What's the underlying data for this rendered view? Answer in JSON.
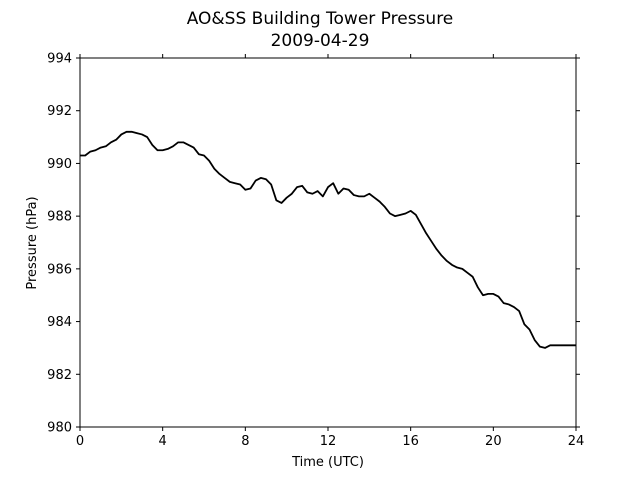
{
  "chart_data": {
    "type": "line",
    "title": "AO&SS Building Tower Pressure",
    "subtitle": "2009-04-29",
    "xlabel": "Time (UTC)",
    "ylabel": "Pressure (hPa)",
    "xlim": [
      0,
      24
    ],
    "ylim": [
      980,
      994
    ],
    "x_ticks": [
      0,
      4,
      8,
      12,
      16,
      20,
      24
    ],
    "y_ticks": [
      980,
      982,
      984,
      986,
      988,
      990,
      992,
      994
    ],
    "grid": false,
    "legend": "none",
    "line_color": "#000000",
    "series": [
      {
        "x": [
          0.0,
          0.25,
          0.5,
          0.75,
          1.0,
          1.25,
          1.5,
          1.75,
          2.0,
          2.25,
          2.5,
          2.75,
          3.0,
          3.25,
          3.5,
          3.75,
          4.0,
          4.25,
          4.5,
          4.75,
          5.0,
          5.25,
          5.5,
          5.75,
          6.0,
          6.25,
          6.5,
          6.75,
          7.0,
          7.25,
          7.5,
          7.75,
          8.0,
          8.25,
          8.5,
          8.75,
          9.0,
          9.25,
          9.5,
          9.75,
          10.0,
          10.25,
          10.5,
          10.75,
          11.0,
          11.25,
          11.5,
          11.75,
          12.0,
          12.25,
          12.5,
          12.75,
          13.0,
          13.25,
          13.5,
          13.75,
          14.0,
          14.25,
          14.5,
          14.75,
          15.0,
          15.25,
          15.5,
          15.75,
          16.0,
          16.25,
          16.5,
          16.75,
          17.0,
          17.25,
          17.5,
          17.75,
          18.0,
          18.25,
          18.5,
          18.75,
          19.0,
          19.25,
          19.5,
          19.75,
          20.0,
          20.25,
          20.5,
          20.75,
          21.0,
          21.25,
          21.5,
          21.75,
          22.0,
          22.25,
          22.5,
          22.75,
          23.0,
          23.25,
          23.5,
          23.75,
          24.0
        ],
        "y": [
          990.3,
          990.3,
          990.45,
          990.5,
          990.6,
          990.65,
          990.8,
          990.9,
          991.1,
          991.2,
          991.2,
          991.15,
          991.1,
          991.0,
          990.7,
          990.5,
          990.5,
          990.55,
          990.65,
          990.8,
          990.8,
          990.7,
          990.6,
          990.35,
          990.3,
          990.1,
          989.8,
          989.6,
          989.45,
          989.3,
          989.25,
          989.2,
          989.0,
          989.05,
          989.35,
          989.45,
          989.4,
          989.2,
          988.6,
          988.5,
          988.7,
          988.85,
          989.1,
          989.15,
          988.9,
          988.85,
          988.95,
          988.75,
          989.1,
          989.25,
          988.85,
          989.05,
          989.0,
          988.8,
          988.75,
          988.75,
          988.85,
          988.7,
          988.55,
          988.35,
          988.1,
          988.0,
          988.05,
          988.1,
          988.2,
          988.05,
          987.7,
          987.35,
          987.05,
          986.75,
          986.5,
          986.3,
          986.15,
          986.05,
          986.0,
          985.85,
          985.7,
          985.3,
          985.0,
          985.05,
          985.05,
          984.95,
          984.7,
          984.65,
          984.55,
          984.4,
          983.9,
          983.7,
          983.3,
          983.05,
          983.0,
          983.1,
          983.1,
          983.1,
          983.1,
          983.1,
          983.1
        ]
      }
    ]
  }
}
